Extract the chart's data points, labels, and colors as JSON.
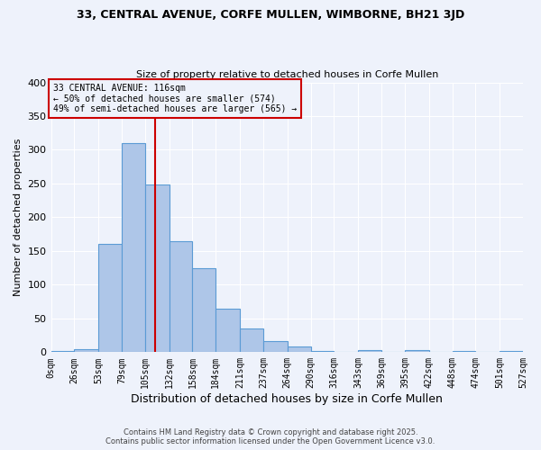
{
  "title1": "33, CENTRAL AVENUE, CORFE MULLEN, WIMBORNE, BH21 3JD",
  "title2": "Size of property relative to detached houses in Corfe Mullen",
  "xlabel": "Distribution of detached houses by size in Corfe Mullen",
  "ylabel": "Number of detached properties",
  "bin_edges": [
    0,
    26,
    53,
    79,
    105,
    132,
    158,
    184,
    211,
    237,
    264,
    290,
    316,
    343,
    369,
    395,
    422,
    448,
    474,
    501,
    527
  ],
  "bar_heights": [
    2,
    5,
    160,
    310,
    248,
    165,
    125,
    65,
    35,
    17,
    8,
    2,
    1,
    3,
    1,
    3,
    1,
    2,
    1,
    2
  ],
  "bar_color": "#aec6e8",
  "bar_edge_color": "#5b9bd5",
  "vline_x": 116,
  "vline_color": "#cc0000",
  "annotation_text": "33 CENTRAL AVENUE: 116sqm\n← 50% of detached houses are smaller (574)\n49% of semi-detached houses are larger (565) →",
  "annotation_box_color": "#cc0000",
  "annotation_text_color": "#000000",
  "background_color": "#eef2fb",
  "grid_color": "#ffffff",
  "ylim": [
    0,
    400
  ],
  "yticks": [
    0,
    50,
    100,
    150,
    200,
    250,
    300,
    350,
    400
  ],
  "footer1": "Contains HM Land Registry data © Crown copyright and database right 2025.",
  "footer2": "Contains public sector information licensed under the Open Government Licence v3.0."
}
